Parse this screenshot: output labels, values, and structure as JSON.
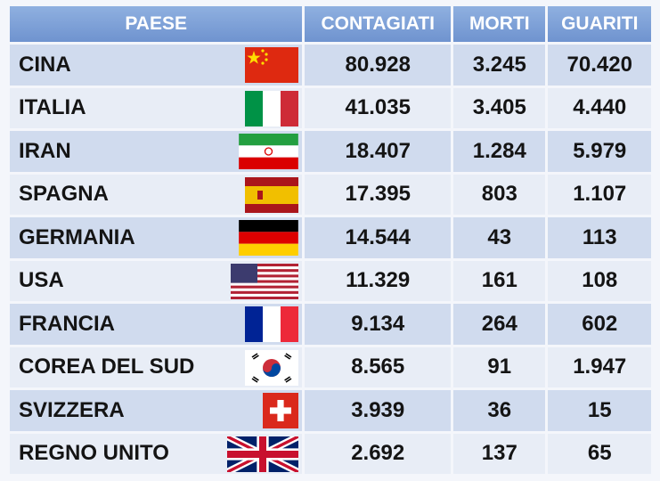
{
  "chart_data": {
    "type": "table",
    "columns": [
      "PAESE",
      "CONTAGIATI",
      "MORTI",
      "GUARITI"
    ],
    "rows": [
      {
        "country": "CINA",
        "flag": "china-flag-icon",
        "cases": "80.928",
        "deaths": "3.245",
        "recovered": "70.420"
      },
      {
        "country": "ITALIA",
        "flag": "italy-flag-icon",
        "cases": "41.035",
        "deaths": "3.405",
        "recovered": "4.440"
      },
      {
        "country": "IRAN",
        "flag": "iran-flag-icon",
        "cases": "18.407",
        "deaths": "1.284",
        "recovered": "5.979"
      },
      {
        "country": "SPAGNA",
        "flag": "spain-flag-icon",
        "cases": "17.395",
        "deaths": "803",
        "recovered": "1.107"
      },
      {
        "country": "GERMANIA",
        "flag": "germany-flag-icon",
        "cases": "14.544",
        "deaths": "43",
        "recovered": "113"
      },
      {
        "country": "USA",
        "flag": "usa-flag-icon",
        "cases": "11.329",
        "deaths": "161",
        "recovered": "108"
      },
      {
        "country": "FRANCIA",
        "flag": "france-flag-icon",
        "cases": "9.134",
        "deaths": "264",
        "recovered": "602"
      },
      {
        "country": "COREA DEL SUD",
        "flag": "south-korea-flag-icon",
        "cases": "8.565",
        "deaths": "91",
        "recovered": "1.947"
      },
      {
        "country": "SVIZZERA",
        "flag": "switzerland-flag-icon",
        "cases": "3.939",
        "deaths": "36",
        "recovered": "15"
      },
      {
        "country": "REGNO UNITO",
        "flag": "uk-flag-icon",
        "cases": "2.692",
        "deaths": "137",
        "recovered": "65"
      }
    ]
  },
  "colors": {
    "header": "#7a9dd6",
    "row_odd": "#d0dbee",
    "row_even": "#e8edf6",
    "text": "#141414"
  }
}
